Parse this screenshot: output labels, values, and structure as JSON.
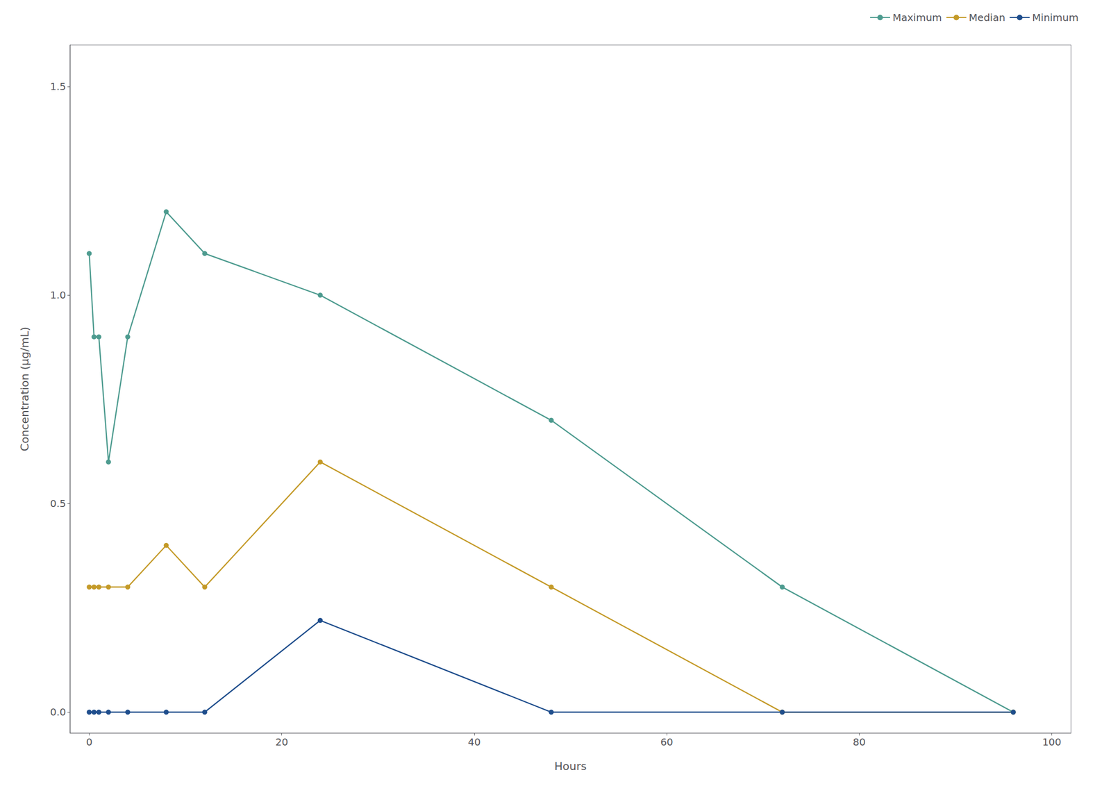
{
  "chart_data": {
    "type": "line",
    "xlabel": "Hours",
    "ylabel": "Concentration (μg/mL)",
    "x": [
      0,
      0.5,
      1,
      2,
      4,
      8,
      12,
      24,
      48,
      72,
      96
    ],
    "series": [
      {
        "name": "Maximum",
        "color": "#4d9b8f",
        "marker": "circle",
        "values": [
          1.1,
          0.9,
          0.9,
          0.6,
          0.9,
          1.2,
          1.1,
          1.0,
          0.7,
          0.3,
          0.0
        ]
      },
      {
        "name": "Median",
        "color": "#c49a28",
        "marker": "circle",
        "values": [
          0.3,
          0.3,
          0.3,
          0.3,
          0.3,
          0.4,
          0.3,
          0.6,
          0.3,
          0.0,
          0.0
        ]
      },
      {
        "name": "Minimum",
        "color": "#1e4d8c",
        "marker": "circle",
        "values": [
          0.0,
          0.0,
          0.0,
          0.0,
          0.0,
          0.0,
          0.0,
          0.22,
          0.0,
          0.0,
          0.0
        ]
      }
    ],
    "xlim": [
      -2,
      102
    ],
    "ylim": [
      -0.05,
      1.6
    ],
    "xticks": [
      0,
      20,
      40,
      60,
      80,
      100
    ],
    "yticks": [
      {
        "value": 0.0,
        "label": "0.0"
      },
      0.5,
      {
        "value": 1.0,
        "label": "1.0"
      },
      1.5
    ],
    "grid": false,
    "legend": "upper right"
  }
}
